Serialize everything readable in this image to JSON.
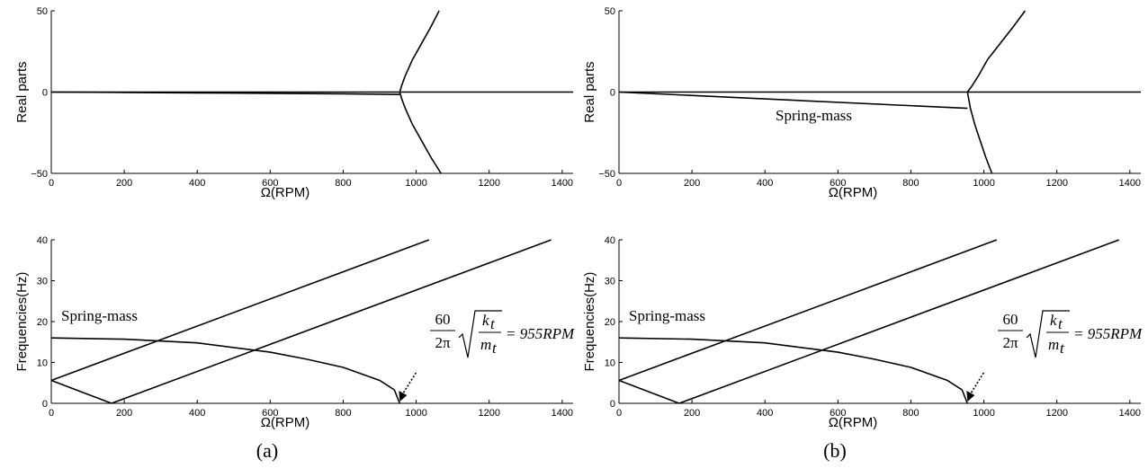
{
  "chart_data": [
    {
      "panel": "a-top",
      "type": "line",
      "ylabel": "Real parts",
      "xlabel": "Ω(RPM)",
      "xlim": [
        0,
        1430
      ],
      "ylim": [
        -50,
        50
      ],
      "xticks": [
        "0",
        "200",
        "400",
        "600",
        "800",
        "1000",
        "1200",
        "1400"
      ],
      "yticks": [
        "50",
        "0",
        "−50"
      ],
      "series": [
        {
          "x": [
            0,
            1430
          ],
          "y": [
            0,
            0
          ]
        },
        {
          "x": [
            0,
            200,
            400,
            600,
            800,
            955
          ],
          "y": [
            0,
            -0.2,
            -0.5,
            -0.8,
            -1.1,
            -1.5
          ]
        },
        {
          "x": [
            1063,
            1040,
            1015,
            990,
            970,
            960,
            955,
            960,
            970,
            990,
            1015,
            1040,
            1068
          ],
          "y": [
            50,
            40,
            30,
            20,
            10,
            4,
            0,
            -4,
            -10,
            -20,
            -30,
            -40,
            -50
          ]
        }
      ]
    },
    {
      "panel": "b-top",
      "type": "line",
      "ylabel": "Real parts",
      "xlabel": "Ω(RPM)",
      "xlim": [
        0,
        1430
      ],
      "ylim": [
        -50,
        50
      ],
      "xticks": [
        "0",
        "200",
        "400",
        "600",
        "800",
        "1000",
        "1200",
        "1400"
      ],
      "yticks": [
        "50",
        "0",
        "−50"
      ],
      "annotations": [
        "Spring-mass"
      ],
      "series": [
        {
          "x": [
            0,
            1430
          ],
          "y": [
            0,
            0
          ]
        },
        {
          "x": [
            0,
            955
          ],
          "y": [
            0,
            -10
          ]
        },
        {
          "x": [
            1113,
            1080,
            1045,
            1010,
            985,
            968,
            955,
            963,
            975,
            990,
            1005,
            1022
          ],
          "y": [
            50,
            40,
            30,
            20,
            10,
            4,
            0,
            -10,
            -20,
            -30,
            -40,
            -50
          ]
        }
      ]
    },
    {
      "panel": "a-bottom",
      "type": "line",
      "ylabel": "Frequencies(Hz)",
      "xlabel": "Ω(RPM)",
      "xlim": [
        0,
        1430
      ],
      "ylim": [
        0,
        40
      ],
      "xticks": [
        "0",
        "200",
        "400",
        "600",
        "800",
        "1000",
        "1200",
        "1400"
      ],
      "yticks": [
        "40",
        "30",
        "20",
        "10",
        "0"
      ],
      "annotations": [
        "Spring-mass"
      ],
      "formula": {
        "numerator": "60",
        "denominator": "2π",
        "k": "k",
        "k_sub": "t",
        "m": "m",
        "m_sub": "t",
        "result": "= 955RPM"
      },
      "series": [
        {
          "x": [
            0,
            200,
            400,
            600,
            700,
            800,
            900,
            940,
            955
          ],
          "y": [
            16,
            15.7,
            14.8,
            12.5,
            10.8,
            8.8,
            5.6,
            3.3,
            0
          ]
        },
        {
          "x": [
            0,
            1035
          ],
          "y": [
            5.6,
            40
          ]
        },
        {
          "x": [
            0,
            165
          ],
          "y": [
            5.6,
            0
          ]
        },
        {
          "x": [
            165,
            1370
          ],
          "y": [
            0,
            40
          ]
        }
      ]
    },
    {
      "panel": "b-bottom",
      "type": "line",
      "ylabel": "Frequencies(Hz)",
      "xlabel": "Ω(RPM)",
      "xlim": [
        0,
        1430
      ],
      "ylim": [
        0,
        40
      ],
      "xticks": [
        "0",
        "200",
        "400",
        "600",
        "800",
        "1000",
        "1200",
        "1400"
      ],
      "yticks": [
        "40",
        "30",
        "20",
        "10",
        "0"
      ],
      "annotations": [
        "Spring-mass"
      ],
      "formula": {
        "numerator": "60",
        "denominator": "2π",
        "k": "k",
        "k_sub": "t",
        "m": "m",
        "m_sub": "t",
        "result": "= 955RPM"
      },
      "series": [
        {
          "x": [
            0,
            200,
            400,
            600,
            700,
            800,
            900,
            940,
            955
          ],
          "y": [
            16,
            15.7,
            14.8,
            12.5,
            10.8,
            8.8,
            5.6,
            3.3,
            0
          ]
        },
        {
          "x": [
            0,
            1035
          ],
          "y": [
            5.6,
            40
          ]
        },
        {
          "x": [
            0,
            165
          ],
          "y": [
            5.6,
            0
          ]
        },
        {
          "x": [
            165,
            1370
          ],
          "y": [
            0,
            40
          ]
        }
      ]
    }
  ],
  "sublabels": [
    "(a)",
    "(b)"
  ]
}
